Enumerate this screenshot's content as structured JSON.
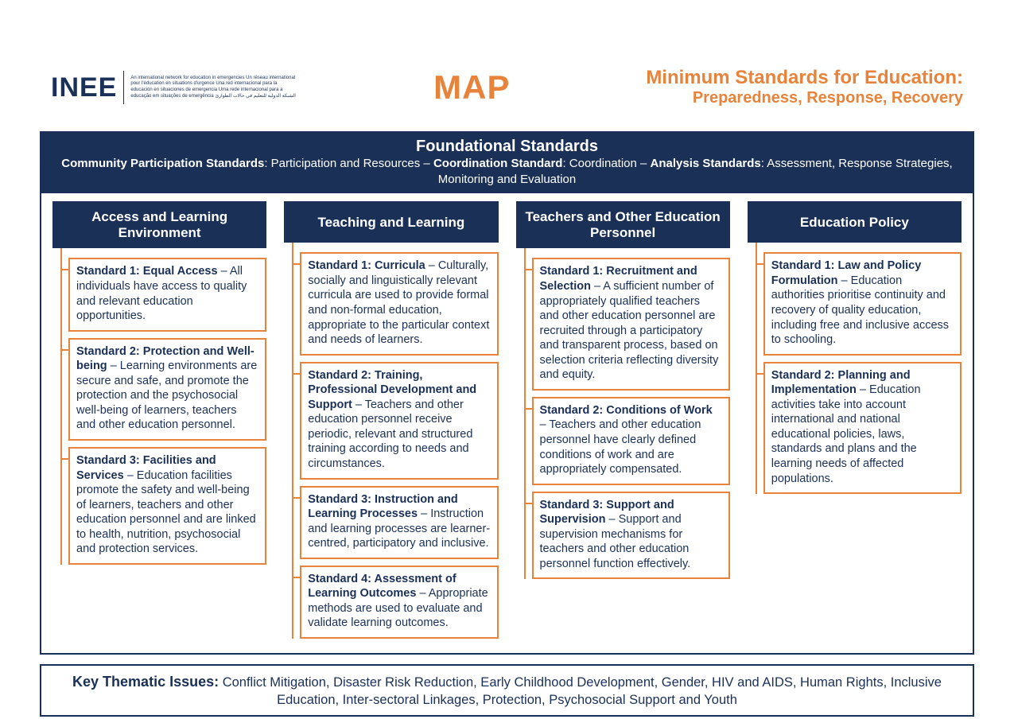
{
  "colors": {
    "navy": "#1a3057",
    "orange": "#e8833c",
    "white": "#ffffff"
  },
  "header": {
    "logo_text": "INEE",
    "tagline": "An international network for education in emergencies\nUn réseau international pour l'éducation en situations d'urgence\nUna red internacional para la educación en situaciones de emergencia\nUma rede internacional para a educação em situações de emergência\nالشبكة الدولية للتعليم في حالات الطوارئ",
    "map_label": "MAP",
    "right_line1": "Minimum Standards for Education:",
    "right_line2": "Preparedness, Response, Recovery"
  },
  "foundational": {
    "title": "Foundational Standards",
    "parts": [
      {
        "bold": "Community Participation Standards",
        "tail": ": Participation and Resources – "
      },
      {
        "bold": "Coordination Standard",
        "tail": ": Coordination – "
      },
      {
        "bold": "Analysis Standards",
        "tail": ": Assessment, Response Strategies, Monitoring and Evaluation"
      }
    ]
  },
  "columns": [
    {
      "header": "Access and Learning Environment",
      "standards": [
        {
          "title": "Standard 1: Equal Access",
          "body": " – All individuals have access to quality and relevant education opportunities."
        },
        {
          "title": "Standard 2: Protection and Well-being",
          "body": " – Learning environments are secure and safe, and promote the protection and the psychosocial well-being of learners, teachers and other education personnel."
        },
        {
          "title": "Standard 3: Facilities and Services",
          "body": " – Education facilities promote the safety and well-being of learners, teachers and other education personnel and are linked to health, nutrition, psychosocial and protection services."
        }
      ]
    },
    {
      "header": "Teaching and Learning",
      "standards": [
        {
          "title": "Standard 1: Curricula",
          "body": " – Culturally, socially and linguistically relevant curricula are used to provide formal and non-formal education, appropriate to the particular context and needs of learners."
        },
        {
          "title": "Standard 2: Training, Professional Development and Support",
          "body": " – Teachers and other education personnel receive periodic, relevant and structured training according to needs and circumstances."
        },
        {
          "title": "Standard 3: Instruction and Learning Processes",
          "body": " – Instruction and learning processes are learner-centred, participatory and inclusive."
        },
        {
          "title": "Standard 4: Assessment of Learning Outcomes",
          "body": " – Appropriate methods are used to evaluate and validate learning outcomes."
        }
      ]
    },
    {
      "header": "Teachers and Other Education Personnel",
      "standards": [
        {
          "title": "Standard 1: Recruitment and Selection",
          "body": " – A sufficient number of appropriately qualified teachers and other education personnel are recruited through a participatory and transparent process, based on selection criteria reflecting diversity and equity."
        },
        {
          "title": "Standard 2: Conditions of Work",
          "body": " – Teachers and other education personnel have clearly defined conditions of work and are appropriately compensated."
        },
        {
          "title": "Standard 3: Support and Supervision",
          "body": " – Support and supervision mechanisms for teachers and other education personnel function effectively."
        }
      ]
    },
    {
      "header": "Education Policy",
      "standards": [
        {
          "title": "Standard 1: Law and Policy Formulation",
          "body": " – Education authorities prioritise continuity and recovery of quality education, including free and inclusive access to schooling."
        },
        {
          "title": "Standard 2: Planning and Implementation",
          "body": " – Education activities take into account international and national educational policies, laws, standards and plans and the learning needs of affected populations."
        }
      ]
    }
  ],
  "key_issues": {
    "lead": "Key Thematic Issues:",
    "body": " Conflict Mitigation, Disaster Risk Reduction, Early Childhood Development, Gender, HIV and AIDS, Human Rights, Inclusive Education, Inter-sectoral Linkages, Protection, Psychosocial Support and Youth"
  }
}
